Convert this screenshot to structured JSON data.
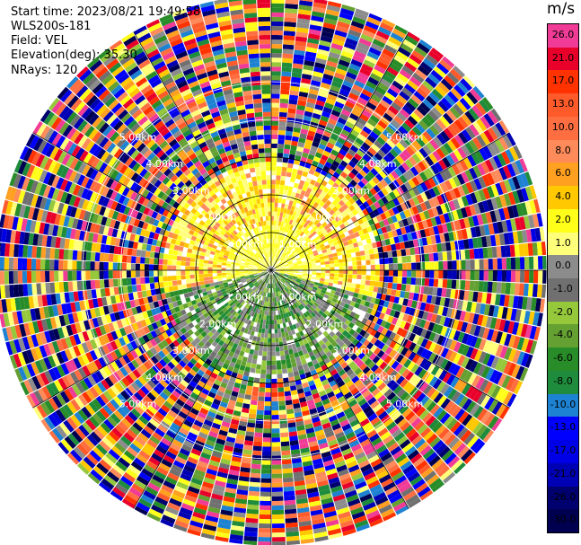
{
  "header": {
    "start_time": "Start time: 2023/08/21 19:49:58",
    "station": "WLS200s-181",
    "field": "Field: VEL",
    "elevation": "Elevation(deg): 35.30",
    "nrays": "NRays: 120"
  },
  "colorbar": {
    "title": "m/s",
    "levels": [
      {
        "label": "26.0",
        "color": "#f03c96"
      },
      {
        "label": "21.0",
        "color": "#e8002a"
      },
      {
        "label": "17.0",
        "color": "#ff3200"
      },
      {
        "label": "13.0",
        "color": "#ff5a2a"
      },
      {
        "label": "10.0",
        "color": "#ff6e40"
      },
      {
        "label": "8.0",
        "color": "#ff8a5a"
      },
      {
        "label": "6.0",
        "color": "#ffa020"
      },
      {
        "label": "4.0",
        "color": "#ffc800"
      },
      {
        "label": "2.0",
        "color": "#ffff1a"
      },
      {
        "label": "1.0",
        "color": "#ffff7a"
      },
      {
        "label": "0.0",
        "color": "#8c8c8c"
      },
      {
        "label": "-1.0",
        "color": "#707070"
      },
      {
        "label": "-2.0",
        "color": "#96c83c"
      },
      {
        "label": "-4.0",
        "color": "#64a032"
      },
      {
        "label": "-6.0",
        "color": "#288c28"
      },
      {
        "label": "-8.0",
        "color": "#1e8c3c"
      },
      {
        "label": "-10.0",
        "color": "#1e82d2"
      },
      {
        "label": "-13.0",
        "color": "#0000ff"
      },
      {
        "label": "-17.0",
        "color": "#0000e6"
      },
      {
        "label": "-21.0",
        "color": "#0000b4"
      },
      {
        "label": "-26.0",
        "color": "#00006e"
      },
      {
        "label": "-30.0",
        "color": "#000050"
      }
    ]
  },
  "chart_data": {
    "type": "heatmap",
    "projection": "polar PPI",
    "field": "VEL",
    "units": "m/s",
    "n_rays": 120,
    "range_rings_km": [
      1.0,
      2.0,
      3.0,
      4.0,
      5.0
    ],
    "range_ring_labels": [
      "1.00km",
      "2.00km",
      "3.00km",
      "4.00km",
      "5.00km"
    ],
    "radial_lines_deg": [
      0,
      30,
      60,
      90,
      120,
      150,
      180,
      210,
      240,
      270,
      300,
      330
    ],
    "max_range_km": 7.3,
    "colorbar_min": -30.0,
    "colorbar_max": 26.0,
    "pattern": "near range (<2.8 km): northern half positive 1 to 13 m/s (yellow/orange), southern half negative -1 to -8 m/s (gray/green); beyond ~2.8 km noisy values spanning full scale"
  }
}
